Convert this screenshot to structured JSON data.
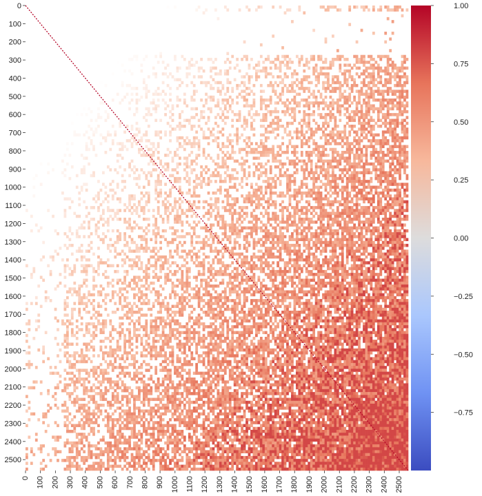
{
  "chart_data": {
    "type": "heatmap",
    "title": "",
    "xlabel": "",
    "ylabel": "",
    "matrix_size": 2560,
    "x_ticks": [
      0,
      100,
      200,
      300,
      400,
      500,
      600,
      700,
      800,
      900,
      1000,
      1100,
      1200,
      1300,
      1400,
      1500,
      1600,
      1700,
      1800,
      1900,
      2000,
      2100,
      2200,
      2300,
      2400,
      2500
    ],
    "y_ticks": [
      0,
      100,
      200,
      300,
      400,
      500,
      600,
      700,
      800,
      900,
      1000,
      1100,
      1200,
      1300,
      1400,
      1500,
      1600,
      1700,
      1800,
      1900,
      2000,
      2100,
      2200,
      2300,
      2400,
      2500
    ],
    "x_tick_labels": [
      "0",
      "100",
      "200",
      "300",
      "400",
      "500",
      "600",
      "700",
      "800",
      "900",
      "1000",
      "1100",
      "1200",
      "1300",
      "1400",
      "1500",
      "1600",
      "1700",
      "1800",
      "1900",
      "2000",
      "2100",
      "2200",
      "2300",
      "2400",
      "2500"
    ],
    "y_tick_labels": [
      "0",
      "100",
      "200",
      "300",
      "400",
      "500",
      "600",
      "700",
      "800",
      "900",
      "1000",
      "1100",
      "1200",
      "1300",
      "1400",
      "1500",
      "1600",
      "1700",
      "1800",
      "1900",
      "2000",
      "2100",
      "2200",
      "2300",
      "2400",
      "2500"
    ],
    "colorbar": {
      "min": -1.0,
      "max": 1.0,
      "ticks": [
        1.0,
        0.75,
        0.5,
        0.25,
        0.0,
        -0.25,
        -0.5,
        -0.75
      ],
      "tick_labels": [
        "1.00",
        "0.75",
        "0.50",
        "0.25",
        "0.00",
        "−0.25",
        "−0.50",
        "−0.75"
      ],
      "colormap": "coolwarm",
      "colors": [
        "#3b4cc0",
        "#6f92f3",
        "#aac7fd",
        "#dddcdc",
        "#f7b89c",
        "#e7745b",
        "#b40426"
      ]
    },
    "diagonal_value": 1.0,
    "sparse_band_rows": [
      20,
      260
    ],
    "description_of_values": {
      "upper_left_region": 0.1,
      "lower_right_region": 0.55
    }
  }
}
